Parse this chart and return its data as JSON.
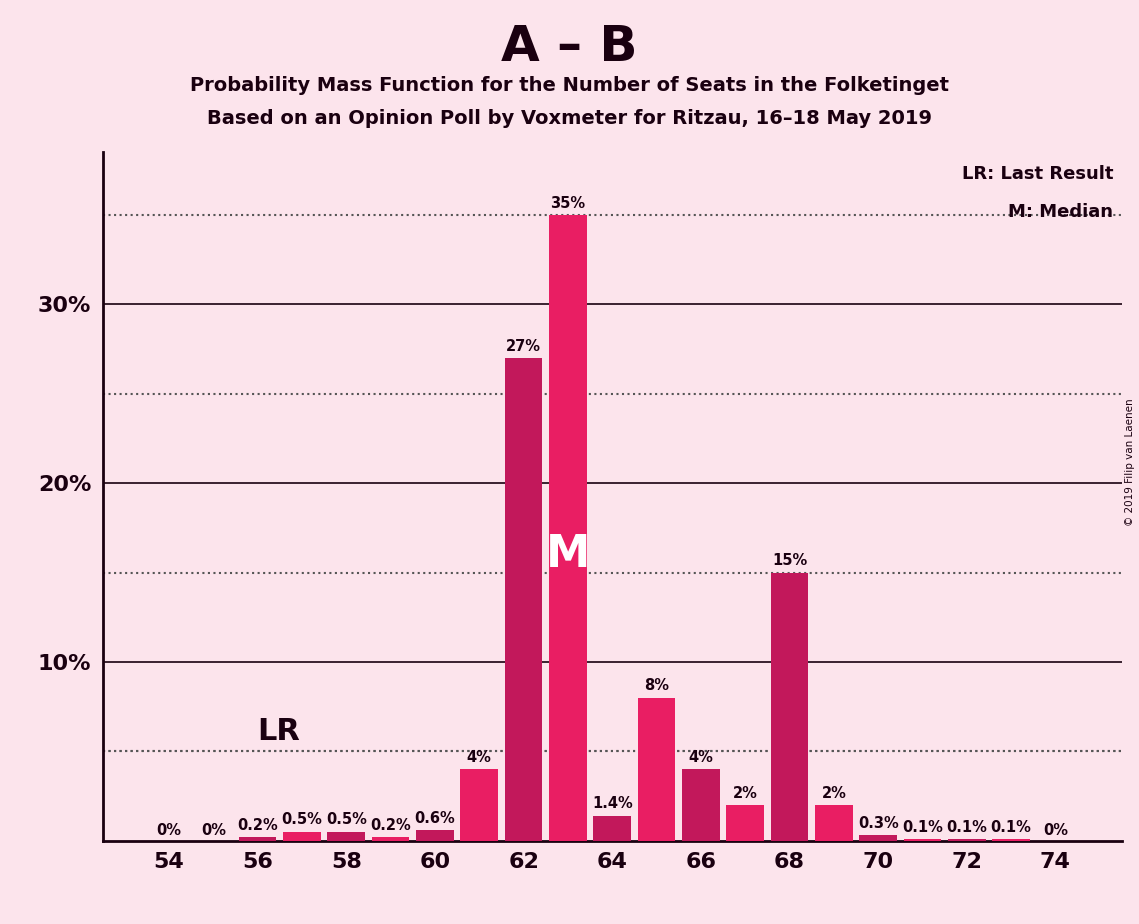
{
  "title_main": "A – B",
  "title_sub1": "Probability Mass Function for the Number of Seats in the Folketinget",
  "title_sub2": "Based on an Opinion Poll by Voxmeter for Ritzau, 16–18 May 2019",
  "copyright": "© 2019 Filip van Laenen",
  "background_color": "#fce4ec",
  "seats": [
    54,
    55,
    56,
    57,
    58,
    59,
    60,
    61,
    62,
    63,
    64,
    65,
    66,
    67,
    68,
    69,
    70,
    71,
    72,
    73,
    74
  ],
  "values": [
    0.0,
    0.0,
    0.2,
    0.5,
    0.5,
    0.2,
    0.6,
    4.0,
    27.0,
    35.0,
    1.4,
    8.0,
    4.0,
    2.0,
    15.0,
    2.0,
    0.3,
    0.1,
    0.1,
    0.1,
    0.0
  ],
  "labels": [
    "0%",
    "0%",
    "0.2%",
    "0.5%",
    "0.5%",
    "0.2%",
    "0.6%",
    "4%",
    "27%",
    "35%",
    "1.4%",
    "8%",
    "4%",
    "2%",
    "15%",
    "2%",
    "0.3%",
    "0.1%",
    "0.1%",
    "0.1%",
    "0%"
  ],
  "color_crimson": "#c2185b",
  "color_magenta": "#e91e63",
  "median_seat": 63,
  "median_bar_seat": 63,
  "lr_value": 5.0,
  "lr_label": "LR",
  "solid_lines": [
    10,
    20,
    30
  ],
  "dotted_lines": [
    5,
    15,
    25,
    35
  ],
  "ytick_positions": [
    10,
    20,
    30
  ],
  "ytick_labels": [
    "10%",
    "20%",
    "30%"
  ],
  "xticks": [
    54,
    56,
    58,
    60,
    62,
    64,
    66,
    68,
    70,
    72,
    74
  ],
  "xlim_left": 52.5,
  "xlim_right": 75.5,
  "ymax": 38.5,
  "legend_lr": "LR: Last Result",
  "legend_m": "M: Median",
  "m_label": "M",
  "text_color": "#1a0010",
  "axis_color": "#1a0010",
  "solid_line_color": "#1a0010",
  "dotted_line_color": "#555555"
}
